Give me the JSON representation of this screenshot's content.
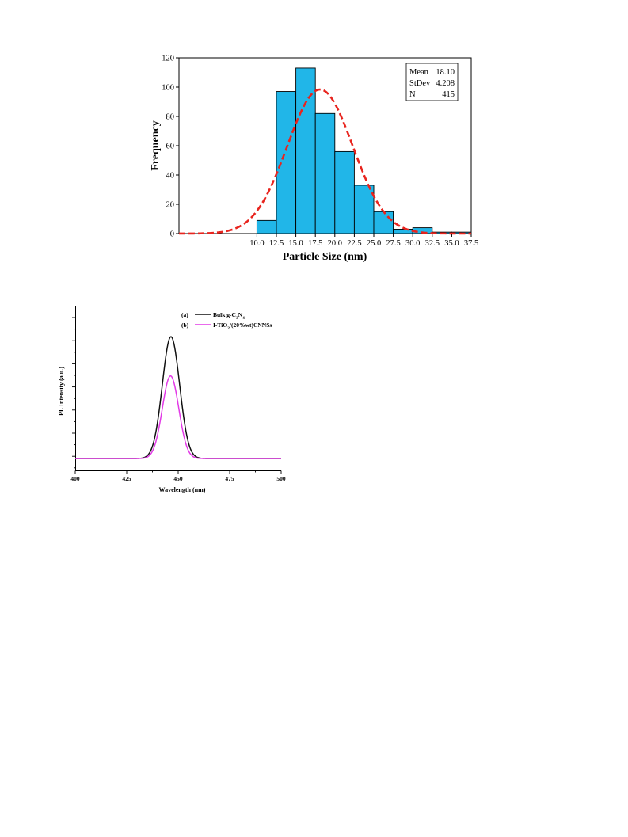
{
  "chart_data": [
    {
      "type": "bar",
      "xlabel": "Particle Size (nm)",
      "ylabel": "Frequency",
      "xlim": [
        0,
        37.5
      ],
      "ylim": [
        0,
        120
      ],
      "x_ticks": [
        "10.0",
        "12.5",
        "15.0",
        "17.5",
        "20.0",
        "22.5",
        "25.0",
        "27.5",
        "30.0",
        "32.5",
        "35.0",
        "37.5"
      ],
      "y_ticks": [
        "0",
        "20",
        "40",
        "60",
        "80",
        "100",
        "120"
      ],
      "bins": [
        {
          "start": 10.0,
          "end": 12.5,
          "value": 9
        },
        {
          "start": 12.5,
          "end": 15.0,
          "value": 97
        },
        {
          "start": 15.0,
          "end": 17.5,
          "value": 113
        },
        {
          "start": 17.5,
          "end": 20.0,
          "value": 82
        },
        {
          "start": 20.0,
          "end": 22.5,
          "value": 56
        },
        {
          "start": 22.5,
          "end": 25.0,
          "value": 33
        },
        {
          "start": 25.0,
          "end": 27.5,
          "value": 15
        },
        {
          "start": 27.5,
          "end": 30.0,
          "value": 3
        },
        {
          "start": 30.0,
          "end": 32.5,
          "value": 4
        },
        {
          "start": 32.5,
          "end": 35.0,
          "value": 1
        },
        {
          "start": 35.0,
          "end": 37.5,
          "value": 1
        }
      ],
      "fit_curve": {
        "type": "normal",
        "mean": 18.1,
        "stdev": 4.208,
        "n": 415,
        "bin_width": 2.5,
        "color": "#e8241e"
      },
      "bar_color": "#21b6e8",
      "stats": [
        {
          "label": "Mean",
          "value": "18.10"
        },
        {
          "label": "StDev",
          "value": "4.208"
        },
        {
          "label": "N",
          "value": "415"
        }
      ],
      "legend_position": "top-right"
    },
    {
      "type": "line",
      "xlabel": "Wavelength (nm)",
      "ylabel": "PL Intensity (a.u.)",
      "xlim": [
        400,
        500
      ],
      "ylim": [
        0,
        1
      ],
      "x_ticks": [
        "400",
        "425",
        "450",
        "475",
        "500"
      ],
      "y_axis_ticks_unlabeled": true,
      "series": [
        {
          "tag": "(a)",
          "name_parts": [
            "Bulk g-C",
            "3",
            "N",
            "4"
          ],
          "color": "#111111",
          "peak_x": 446.5,
          "peak_y": 0.9,
          "sigma": 4.2,
          "baseline": 0.0
        },
        {
          "tag": "(b)",
          "name_parts": [
            "I-TiO",
            "2",
            "/(20%wt)CNNSs"
          ],
          "color": "#e23ae6",
          "peak_x": 446.3,
          "peak_y": 0.61,
          "sigma": 4.0,
          "baseline": 0.0
        }
      ],
      "legend_position": "top-center"
    }
  ]
}
